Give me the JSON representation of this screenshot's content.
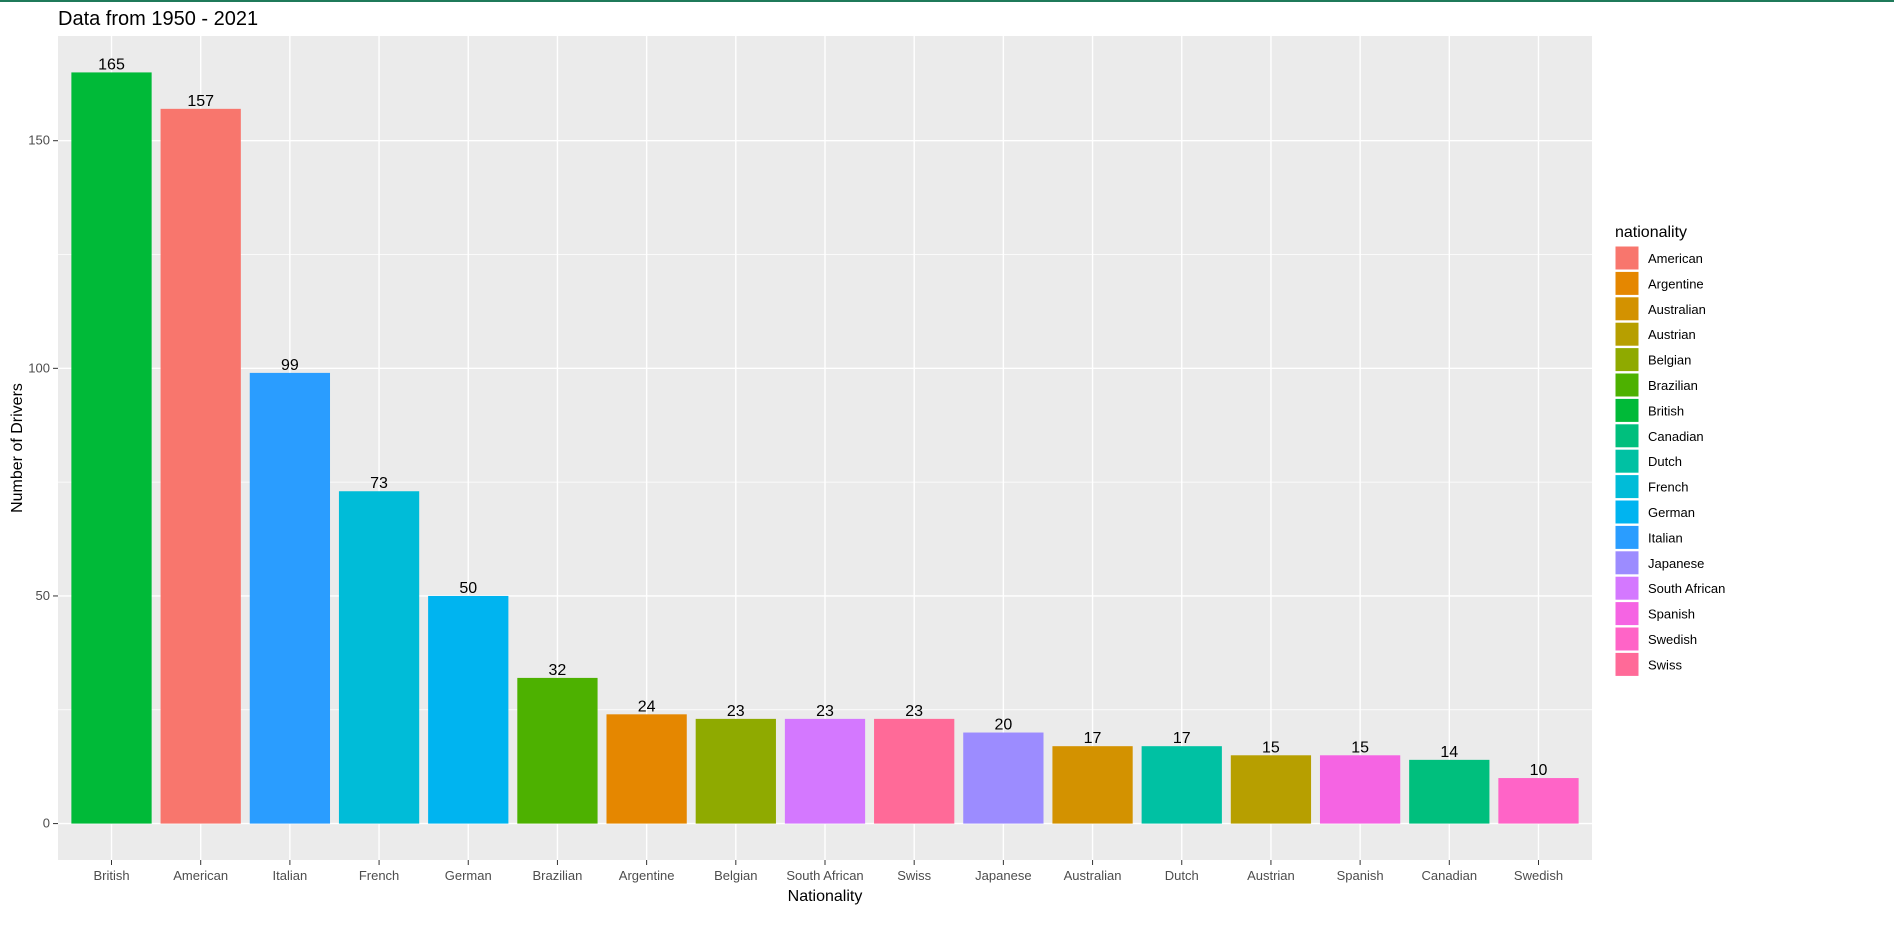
{
  "chart_data": {
    "type": "bar",
    "title": "Data from 1950 - 2021",
    "xlabel": "Nationality",
    "ylabel": "Number of Drivers",
    "ylim": [
      -8,
      173
    ],
    "yticks": [
      0,
      50,
      100,
      150
    ],
    "grid": true,
    "legend_position": "right",
    "legend_title": "nationality",
    "categories": [
      "British",
      "American",
      "Italian",
      "French",
      "German",
      "Brazilian",
      "Argentine",
      "Belgian",
      "South African",
      "Swiss",
      "Japanese",
      "Australian",
      "Dutch",
      "Austrian",
      "Spanish",
      "Canadian",
      "Swedish"
    ],
    "values": [
      165,
      157,
      99,
      73,
      50,
      32,
      24,
      23,
      23,
      23,
      20,
      17,
      17,
      15,
      15,
      14,
      10
    ],
    "legend": [
      {
        "label": "American",
        "color": "#F8766D"
      },
      {
        "label": "Argentine",
        "color": "#E58700"
      },
      {
        "label": "Australian",
        "color": "#D39200"
      },
      {
        "label": "Austrian",
        "color": "#B79F00"
      },
      {
        "label": "Belgian",
        "color": "#8FAA00"
      },
      {
        "label": "Brazilian",
        "color": "#4DB100"
      },
      {
        "label": "British",
        "color": "#00BA38"
      },
      {
        "label": "Canadian",
        "color": "#00BF7D"
      },
      {
        "label": "Dutch",
        "color": "#00C1A3"
      },
      {
        "label": "French",
        "color": "#00BCD8"
      },
      {
        "label": "German",
        "color": "#00B4F0"
      },
      {
        "label": "Italian",
        "color": "#2A9DFF"
      },
      {
        "label": "Japanese",
        "color": "#9C8CFF"
      },
      {
        "label": "South African",
        "color": "#D478FF"
      },
      {
        "label": "Spanish",
        "color": "#F564E3"
      },
      {
        "label": "Swedish",
        "color": "#FF64C7"
      },
      {
        "label": "Swiss",
        "color": "#FF6A98"
      }
    ],
    "panel_color": "#EBEBEB",
    "grid_color": "#FFFFFF"
  }
}
